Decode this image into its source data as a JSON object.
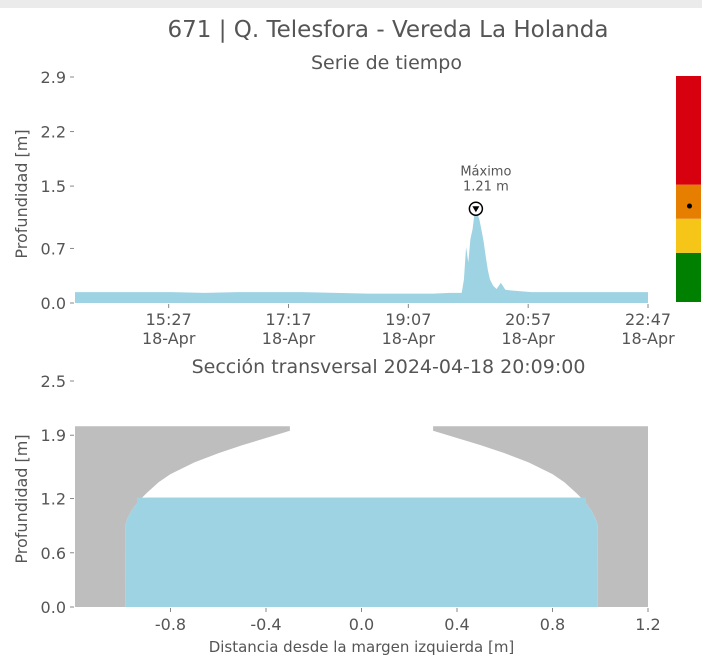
{
  "title": "671 | Q. Telesfora - Vereda La Holanda",
  "chart_data": [
    {
      "type": "area",
      "title": "Serie de tiempo",
      "ylabel": "Profundidad [m]",
      "xlabel": "",
      "y_ticks": [
        "0.0",
        "0.7",
        "1.5",
        "2.2",
        "2.9"
      ],
      "y_tick_values": [
        0.0,
        0.7,
        1.5,
        2.2,
        2.9
      ],
      "ylim": [
        0,
        2.9
      ],
      "x_ticks": [
        {
          "time": "15:27",
          "date": "18-Apr"
        },
        {
          "time": "17:17",
          "date": "18-Apr"
        },
        {
          "time": "19:07",
          "date": "18-Apr"
        },
        {
          "time": "20:57",
          "date": "18-Apr"
        },
        {
          "time": "22:47",
          "date": "18-Apr"
        }
      ],
      "x_tick_values": [
        "15:27",
        "17:17",
        "19:07",
        "20:57",
        "22:47"
      ],
      "xlim": [
        "14:01",
        "22:47"
      ],
      "color": "#9ed3e3",
      "series": [
        {
          "x": [
            "14:01",
            "14:30",
            "15:00",
            "15:30",
            "16:00",
            "16:30",
            "17:00",
            "17:30",
            "18:00",
            "18:30",
            "19:00",
            "19:07",
            "19:15",
            "19:30",
            "19:45",
            "19:56",
            "19:58",
            "20:00",
            "20:02",
            "20:04",
            "20:06",
            "20:08",
            "20:09",
            "20:10",
            "20:12",
            "20:14",
            "20:16",
            "20:18",
            "20:20",
            "20:22",
            "20:25",
            "20:28",
            "20:32",
            "20:36",
            "20:42",
            "20:50",
            "21:00",
            "21:30",
            "22:00",
            "22:30",
            "22:47"
          ],
          "y": [
            0.14,
            0.14,
            0.14,
            0.14,
            0.13,
            0.14,
            0.14,
            0.14,
            0.13,
            0.12,
            0.12,
            0.12,
            0.12,
            0.12,
            0.13,
            0.13,
            0.3,
            0.72,
            0.52,
            0.82,
            0.95,
            1.18,
            1.21,
            1.15,
            1.08,
            0.95,
            0.8,
            0.6,
            0.42,
            0.3,
            0.22,
            0.18,
            0.26,
            0.17,
            0.16,
            0.15,
            0.14,
            0.14,
            0.14,
            0.14,
            0.14
          ]
        }
      ],
      "annotation": {
        "label": "Máximo",
        "value_text": "1.21 m",
        "x": "20:09",
        "y": 1.21
      },
      "alert_levels": [
        {
          "color": "#008000",
          "from": 0.0,
          "to": 0.62
        },
        {
          "color": "#f5c518",
          "from": 0.62,
          "to": 1.05
        },
        {
          "color": "#e67e00",
          "from": 1.05,
          "to": 1.48
        },
        {
          "color": "#d7000f",
          "from": 1.48,
          "to": 2.85
        }
      ],
      "alert_marker_value": 1.21
    },
    {
      "type": "area",
      "title": "Sección transversal 2024-04-18 20:09:00",
      "xlabel": "Distancia desde la margen izquierda [m]",
      "ylabel": "Profundidad [m]",
      "x_ticks": [
        "-0.8",
        "-0.4",
        "0.0",
        "0.4",
        "0.8",
        "1.2"
      ],
      "x_tick_values": [
        -0.8,
        -0.4,
        0.0,
        0.4,
        0.8,
        1.2
      ],
      "y_ticks": [
        "0.0",
        "0.6",
        "1.2",
        "1.9",
        "2.5"
      ],
      "y_tick_values": [
        0.0,
        0.6,
        1.2,
        1.9,
        2.5
      ],
      "xlim": [
        -1.2,
        1.2
      ],
      "ylim": [
        0,
        2.5
      ],
      "water_level": 1.21,
      "water_color": "#9ed3e3",
      "ground_color": "#bebebe",
      "water_extent": [
        -0.99,
        0.99
      ],
      "profile": {
        "x": [
          -0.99,
          -0.98,
          -0.96,
          -0.93,
          -0.9,
          -0.85,
          -0.8,
          -0.7,
          -0.6,
          -0.5,
          -0.4,
          -0.3,
          -0.2,
          -0.1,
          0.0,
          0.1,
          0.2,
          0.3,
          0.4,
          0.5,
          0.6,
          0.7,
          0.8,
          0.85,
          0.9,
          0.93,
          0.96,
          0.98,
          0.99
        ],
        "y": [
          0.9,
          0.98,
          1.08,
          1.18,
          1.26,
          1.38,
          1.47,
          1.6,
          1.7,
          1.79,
          1.87,
          1.95,
          2.0,
          2.0,
          2.0,
          2.0,
          2.0,
          1.95,
          1.87,
          1.79,
          1.7,
          1.6,
          1.47,
          1.38,
          1.26,
          1.18,
          1.08,
          0.98,
          0.9
        ]
      }
    }
  ]
}
